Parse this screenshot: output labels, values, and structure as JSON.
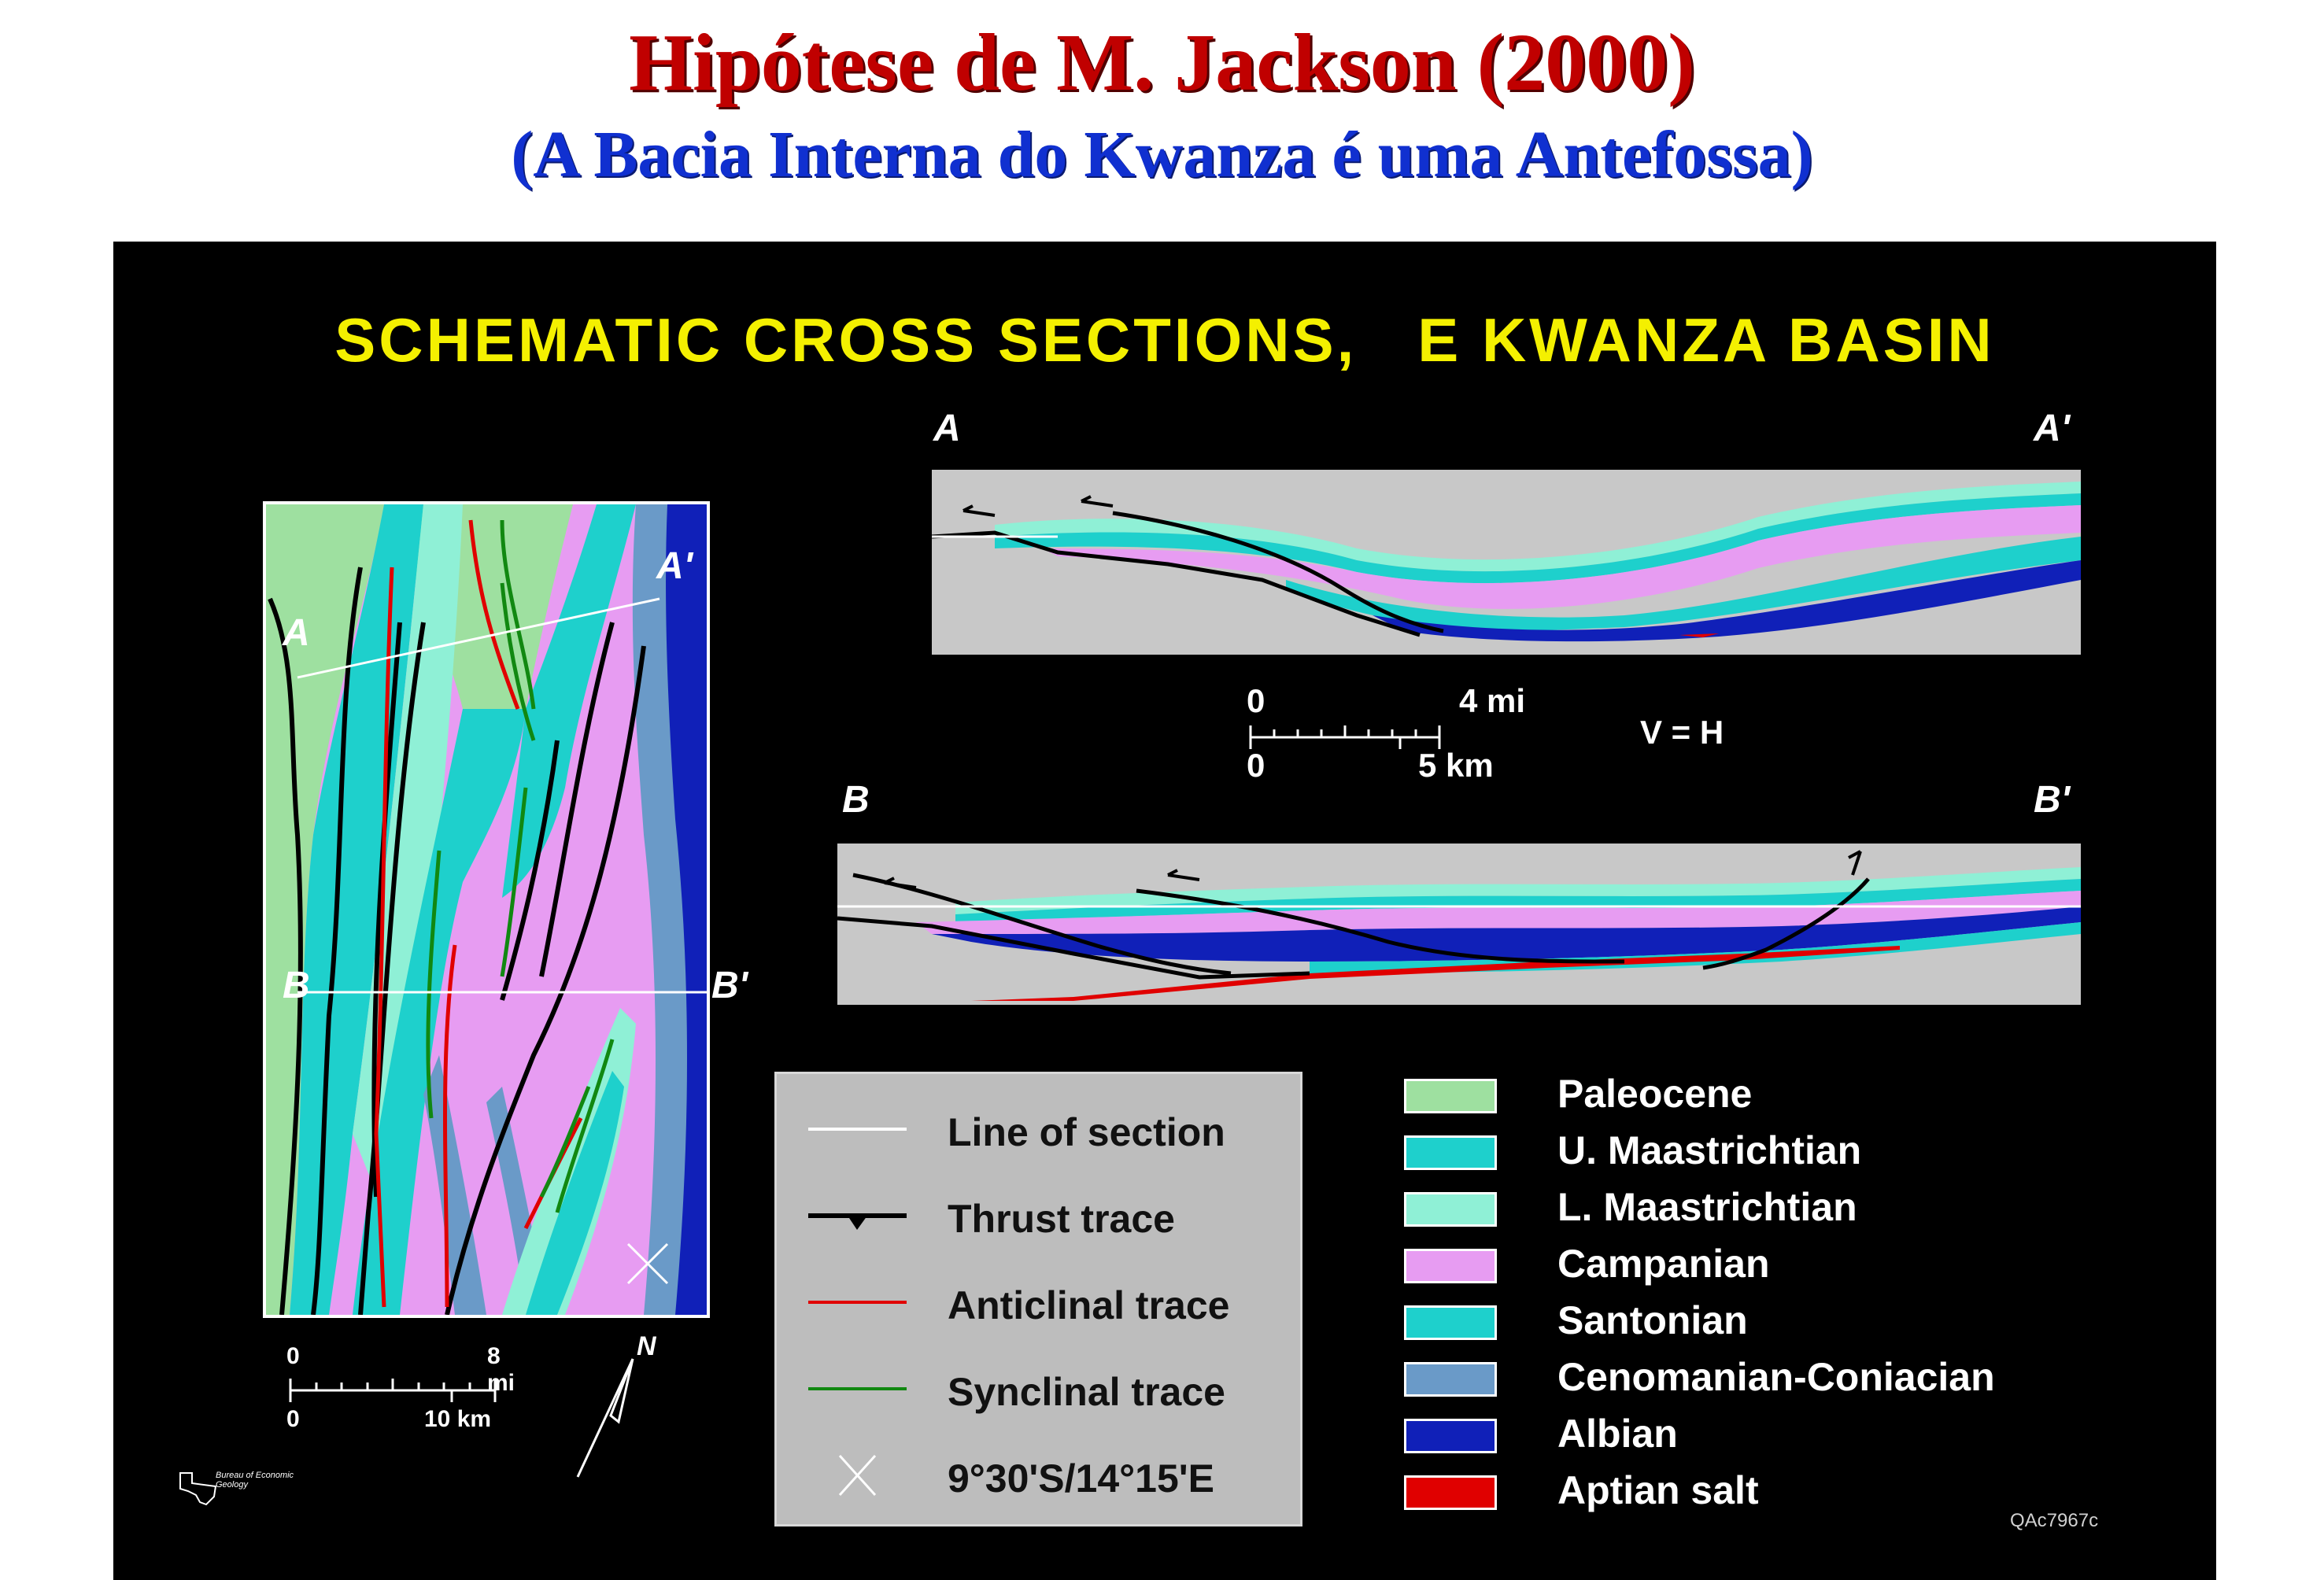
{
  "title": "Hipótese de M. Jackson (2000)",
  "subtitle": "(A Bacia Interna do Kwanza é uma Antefossa)",
  "figure": {
    "title": "SCHEMATIC CROSS SECTIONS,   E KWANZA BASIN",
    "map": {
      "labels": {
        "a": "A",
        "a_prime": "A'",
        "b": "B",
        "b_prime": "B'"
      },
      "scale": {
        "top_zero": "0",
        "top_end": "8 mi",
        "bottom_zero": "0",
        "bottom_end": "10 km"
      },
      "north_label": "N"
    },
    "section_aa": {
      "left_label": "A",
      "right_label": "A'"
    },
    "section_bb": {
      "left_label": "B",
      "right_label": "B'"
    },
    "section_scale": {
      "top_zero": "0",
      "top_end": "4 mi",
      "bottom_zero": "0",
      "bottom_end": "5 km",
      "ratio": "V = H"
    },
    "symbol_legend": [
      {
        "label": "Line of section",
        "symbol": "white-line"
      },
      {
        "label": "Thrust trace",
        "symbol": "thrust-line"
      },
      {
        "label": "Anticlinal trace",
        "symbol": "red-line"
      },
      {
        "label": "Synclinal trace",
        "symbol": "green-line"
      },
      {
        "label": "9°30'S/14°15'E",
        "symbol": "cross-marker"
      }
    ],
    "unit_legend": [
      {
        "label": "Paleocene",
        "color": "#9ee0a0"
      },
      {
        "label": "U. Maastrichtian",
        "color": "#1ed0cc"
      },
      {
        "label": "L. Maastrichtian",
        "color": "#8ff0d6"
      },
      {
        "label": "Campanian",
        "color": "#e79cf2"
      },
      {
        "label": "Santonian",
        "color": "#1ed0cc"
      },
      {
        "label": "Cenomanian-Coniacian",
        "color": "#6a9ac8"
      },
      {
        "label": "Albian",
        "color": "#1020b8"
      },
      {
        "label": "Aptian salt",
        "color": "#e00000"
      }
    ],
    "logo_text": "Bureau of Economic Geology",
    "figure_code": "QAc7967c"
  }
}
